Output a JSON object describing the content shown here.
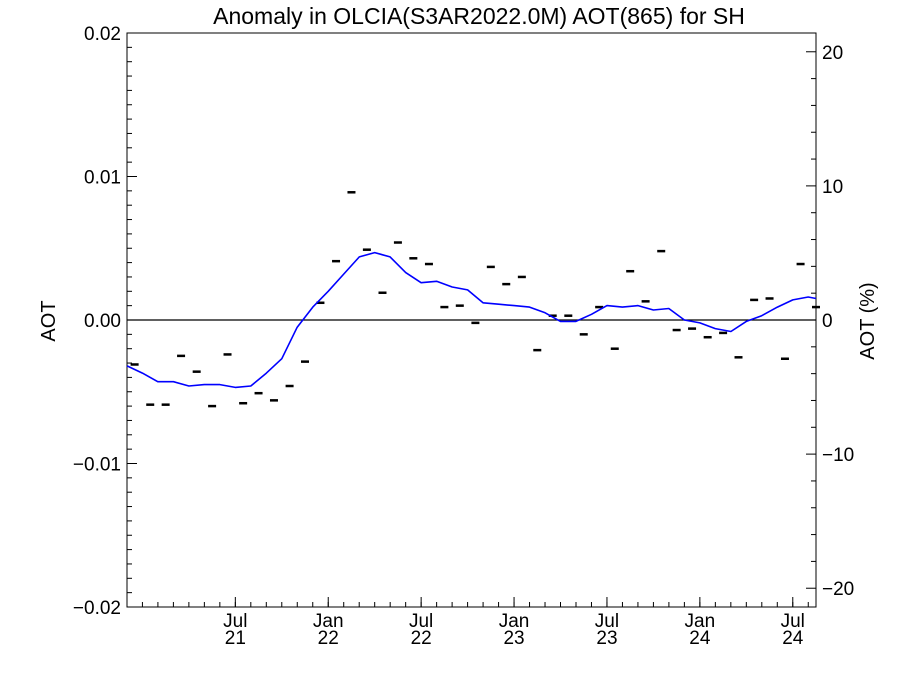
{
  "chart_data": {
    "type": "line",
    "title": "Anomaly in OLCIA(S3AR2022.0M) AOT(865) for SH",
    "ylabel": "AOT",
    "y2label": "AOT (%)",
    "ylim": [
      -0.02,
      0.02
    ],
    "y2lim": [
      -21.4,
      21.4
    ],
    "xlim": [
      2020.917,
      2024.625
    ],
    "y_ticks": [
      {
        "value": 0.02,
        "label": "0.02"
      },
      {
        "value": 0.01,
        "label": "0.01"
      },
      {
        "value": 0.0,
        "label": "0.00"
      },
      {
        "value": -0.01,
        "label": "−0.01"
      },
      {
        "value": -0.02,
        "label": "−0.02"
      }
    ],
    "y2_ticks": [
      {
        "value": 20,
        "label": "20"
      },
      {
        "value": 10,
        "label": "10"
      },
      {
        "value": 0,
        "label": "0"
      },
      {
        "value": -10,
        "label": "−10"
      },
      {
        "value": -20,
        "label": "−20"
      }
    ],
    "x_ticks": [
      {
        "value": 2021.5,
        "month": "Jul",
        "year": "21"
      },
      {
        "value": 2022.0,
        "month": "Jan",
        "year": "22"
      },
      {
        "value": 2022.5,
        "month": "Jul",
        "year": "22"
      },
      {
        "value": 2023.0,
        "month": "Jan",
        "year": "23"
      },
      {
        "value": 2023.5,
        "month": "Jul",
        "year": "23"
      },
      {
        "value": 2024.0,
        "month": "Jan",
        "year": "24"
      },
      {
        "value": 2024.5,
        "month": "Jul",
        "year": "24"
      }
    ],
    "zero_line": true,
    "series": [
      {
        "kind": "markers",
        "color": "#000000",
        "x": [
          2020.958,
          2021.042,
          2021.125,
          2021.208,
          2021.292,
          2021.375,
          2021.458,
          2021.542,
          2021.625,
          2021.708,
          2021.792,
          2021.875,
          2021.958,
          2022.042,
          2022.125,
          2022.208,
          2022.292,
          2022.375,
          2022.458,
          2022.542,
          2022.625,
          2022.708,
          2022.792,
          2022.875,
          2022.958,
          2023.042,
          2023.125,
          2023.208,
          2023.292,
          2023.375,
          2023.458,
          2023.542,
          2023.625,
          2023.708,
          2023.792,
          2023.875,
          2023.958,
          2024.042,
          2024.125,
          2024.208,
          2024.292,
          2024.375,
          2024.458,
          2024.542,
          2024.625
        ],
        "y": [
          -0.0031,
          -0.0059,
          -0.0059,
          -0.0025,
          -0.0036,
          -0.006,
          -0.0024,
          -0.0058,
          -0.0051,
          -0.0056,
          -0.0046,
          -0.0029,
          0.0012,
          0.0041,
          0.0089,
          0.0049,
          0.0019,
          0.0054,
          0.0043,
          0.0039,
          0.0009,
          0.001,
          -0.0002,
          0.0037,
          0.0025,
          0.003,
          -0.0021,
          0.0003,
          0.0003,
          -0.001,
          0.0009,
          -0.002,
          0.0034,
          0.0013,
          0.0048,
          -0.0007,
          -0.0006,
          -0.0012,
          -0.0009,
          -0.0026,
          0.0014,
          0.0015,
          -0.0027,
          0.0039,
          0.0009
        ]
      },
      {
        "kind": "line",
        "color": "#0000ff",
        "x": [
          2020.917,
          2021.0,
          2021.083,
          2021.167,
          2021.25,
          2021.333,
          2021.417,
          2021.5,
          2021.583,
          2021.667,
          2021.75,
          2021.833,
          2021.917,
          2022.0,
          2022.083,
          2022.167,
          2022.25,
          2022.333,
          2022.417,
          2022.5,
          2022.583,
          2022.667,
          2022.75,
          2022.833,
          2022.917,
          2023.0,
          2023.083,
          2023.167,
          2023.25,
          2023.333,
          2023.417,
          2023.5,
          2023.583,
          2023.667,
          2023.75,
          2023.833,
          2023.917,
          2024.0,
          2024.083,
          2024.167,
          2024.25,
          2024.333,
          2024.417,
          2024.5,
          2024.583,
          2024.625
        ],
        "y": [
          -0.0032,
          -0.0037,
          -0.0043,
          -0.0043,
          -0.0046,
          -0.0045,
          -0.0045,
          -0.0047,
          -0.0046,
          -0.0037,
          -0.0027,
          -0.0005,
          0.0009,
          0.002,
          0.0032,
          0.0044,
          0.0047,
          0.0044,
          0.0033,
          0.0026,
          0.0027,
          0.0023,
          0.0021,
          0.0012,
          0.0011,
          0.001,
          0.0009,
          0.0005,
          -0.0001,
          -0.0001,
          0.0004,
          0.001,
          0.0009,
          0.001,
          0.0007,
          0.0008,
          0.0,
          -0.0002,
          -0.0006,
          -0.0008,
          -0.0001,
          0.0003,
          0.0009,
          0.0014,
          0.0016,
          0.0015
        ]
      }
    ]
  }
}
